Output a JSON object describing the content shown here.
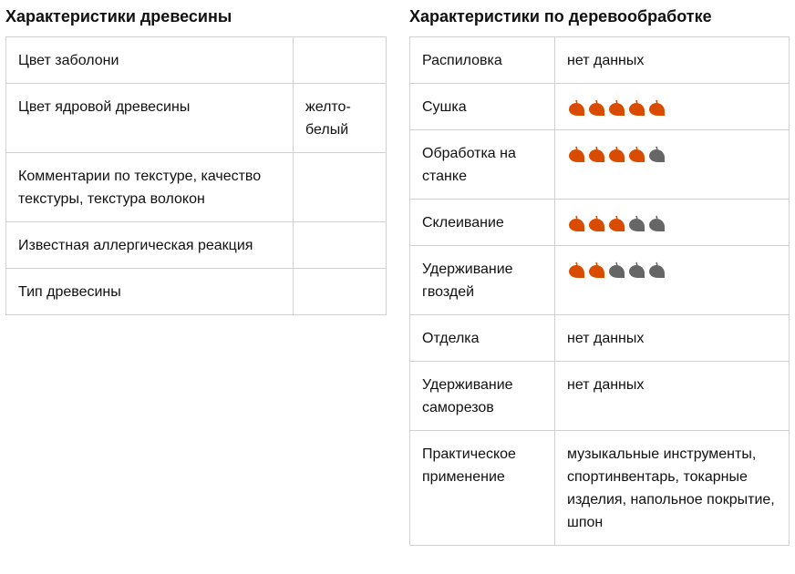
{
  "wood": {
    "title": "Характеристики древесины",
    "rows": [
      {
        "label": "Цвет заболони",
        "value": ""
      },
      {
        "label": "Цвет ядровой древесины",
        "value": "желто-белый"
      },
      {
        "label": "Комментарии по текстуре, качество текстуры, текстура волокон",
        "value": ""
      },
      {
        "label": "Известная аллергическая реакция",
        "value": ""
      },
      {
        "label": "Тип древесины",
        "value": ""
      }
    ]
  },
  "working": {
    "title": "Характеристики по деревообработке",
    "rating_max": 5,
    "colors": {
      "leaf_on": "#d94c00",
      "leaf_off": "#666666"
    },
    "rows": [
      {
        "label": "Распиловка",
        "value": "нет данных"
      },
      {
        "label": "Сушка",
        "rating": 5
      },
      {
        "label": "Обработка на станке",
        "rating": 4
      },
      {
        "label": "Склеивание",
        "rating": 3
      },
      {
        "label": "Удерживание гвоздей",
        "rating": 2
      },
      {
        "label": "Отделка",
        "value": "нет данных"
      },
      {
        "label": "Удерживание саморезов",
        "value": "нет данных"
      },
      {
        "label": "Практическое применение",
        "value": "музыкальные инструменты, спортинвентарь, токарные изделия, напольное покрытие, шпон"
      }
    ]
  }
}
